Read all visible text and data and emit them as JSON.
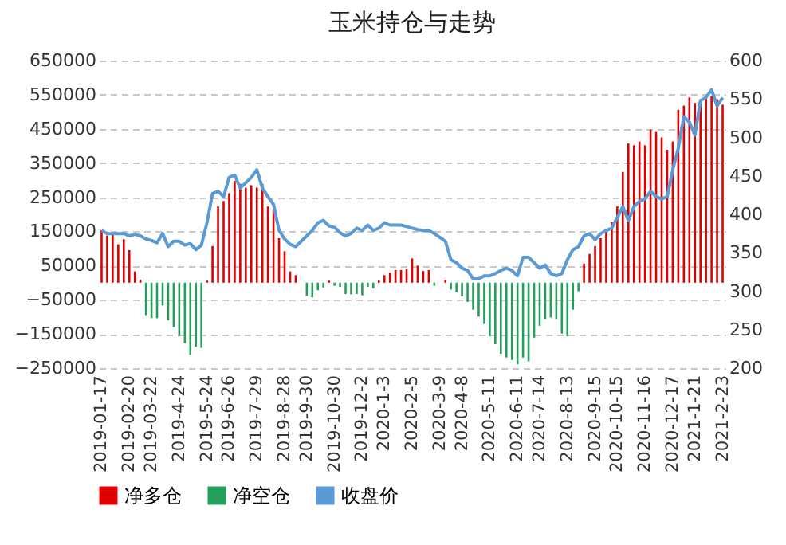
{
  "chart_data": {
    "type": "bar",
    "title": "玉米持仓与走势",
    "categories": [
      "2019-01-17",
      null,
      null,
      null,
      null,
      "2019-02-20",
      null,
      null,
      null,
      "2019-03-22",
      null,
      null,
      null,
      null,
      "2019-4-24",
      null,
      null,
      null,
      null,
      "2019-5-24",
      null,
      null,
      null,
      "2019-6-26",
      null,
      null,
      null,
      null,
      "2019-7-29",
      null,
      null,
      null,
      null,
      "2019-8-28",
      null,
      null,
      null,
      "2019-9-30",
      null,
      null,
      null,
      null,
      "2019-10-30",
      null,
      null,
      null,
      null,
      "2019-12-2",
      null,
      null,
      null,
      "2020-1-3",
      null,
      null,
      null,
      null,
      "2020-2-5",
      null,
      null,
      null,
      null,
      "2020-3-9",
      null,
      null,
      null,
      "2020-4-8",
      null,
      null,
      null,
      null,
      "2020-5-11",
      null,
      null,
      null,
      null,
      "2020-6-11",
      null,
      null,
      null,
      "2020-7-14",
      null,
      null,
      null,
      null,
      "2020-8-13",
      null,
      null,
      null,
      null,
      "2020-9-15",
      null,
      null,
      null,
      "2020-10-15",
      null,
      null,
      null,
      null,
      "2020-11-16",
      null,
      null,
      null,
      null,
      "2020-12-17",
      null,
      null,
      null,
      "2021-1-21",
      null,
      null,
      null,
      null,
      "2021-2-23"
    ],
    "series": [
      {
        "name": "净多仓",
        "color": "#e00000",
        "values": [
          153000,
          138000,
          143000,
          112000,
          127000,
          95000,
          33000,
          9000,
          null,
          null,
          null,
          null,
          null,
          null,
          null,
          null,
          null,
          null,
          null,
          6000,
          107000,
          223000,
          239000,
          262000,
          298000,
          289000,
          278000,
          285000,
          278000,
          289000,
          223000,
          216000,
          130000,
          92000,
          33000,
          22000,
          null,
          null,
          null,
          null,
          null,
          6000,
          null,
          null,
          null,
          null,
          null,
          null,
          null,
          null,
          6000,
          22000,
          29000,
          37000,
          37000,
          40000,
          71000,
          50000,
          34000,
          37000,
          null,
          null,
          9000,
          null,
          null,
          null,
          null,
          null,
          null,
          null,
          null,
          null,
          null,
          null,
          null,
          null,
          null,
          null,
          null,
          null,
          null,
          null,
          null,
          null,
          null,
          null,
          null,
          56000,
          84000,
          107000,
          130000,
          154000,
          177000,
          223000,
          324000,
          407000,
          402000,
          413000,
          402000,
          448000,
          441000,
          425000,
          389000,
          413000,
          506000,
          518000,
          542000,
          526000,
          534000,
          542000,
          546000,
          537000,
          521000
        ]
      },
      {
        "name": "净空仓",
        "color": "#22a05a",
        "values": [
          null,
          null,
          null,
          null,
          null,
          null,
          null,
          null,
          -95000,
          -104000,
          -104000,
          -67000,
          -110000,
          -130000,
          -157000,
          -177000,
          -211000,
          -188000,
          -191000,
          null,
          null,
          null,
          null,
          null,
          null,
          null,
          null,
          null,
          null,
          null,
          null,
          null,
          null,
          null,
          null,
          null,
          null,
          -40000,
          -43000,
          -22000,
          -14000,
          null,
          -9000,
          -12000,
          -33000,
          -34000,
          -33000,
          -37000,
          -12000,
          -17000,
          null,
          null,
          null,
          null,
          null,
          null,
          null,
          null,
          null,
          null,
          -9000,
          null,
          null,
          -20000,
          -28000,
          -40000,
          -56000,
          -79000,
          -99000,
          -121000,
          -157000,
          -180000,
          -208000,
          -219000,
          -226000,
          -239000,
          -219000,
          -230000,
          -161000,
          -126000,
          -106000,
          -102000,
          -106000,
          -149000,
          -157000,
          -79000,
          -25000,
          null,
          null,
          null,
          null,
          null,
          null,
          null,
          null,
          null,
          null,
          null,
          null,
          null,
          null,
          null,
          null,
          null,
          null,
          null,
          null,
          null,
          null,
          null,
          null,
          null,
          null
        ]
      },
      {
        "name": "收盘价",
        "type": "line",
        "axis": "y2",
        "color": "#5b9bd5",
        "values": [
          379,
          375,
          375,
          375,
          375,
          372,
          374,
          372,
          368,
          366,
          363,
          375,
          358,
          365,
          365,
          360,
          362,
          354,
          360,
          389,
          427,
          430,
          423,
          448,
          451,
          434,
          441,
          448,
          458,
          434,
          423,
          413,
          379,
          368,
          361,
          358,
          365,
          372,
          379,
          389,
          392,
          385,
          383,
          376,
          372,
          375,
          382,
          379,
          386,
          379,
          382,
          389,
          386,
          386,
          386,
          384,
          382,
          380,
          379,
          379,
          375,
          370,
          365,
          341,
          337,
          330,
          327,
          316,
          316,
          320,
          320,
          323,
          327,
          330,
          327,
          320,
          344,
          344,
          337,
          330,
          334,
          323,
          320,
          323,
          341,
          354,
          358,
          372,
          375,
          367,
          375,
          379,
          382,
          396,
          410,
          392,
          410,
          417,
          420,
          430,
          423,
          420,
          423,
          458,
          486,
          527,
          520,
          503,
          548,
          552,
          562,
          541,
          552
        ]
      }
    ],
    "ylim": [
      -250000,
      650000
    ],
    "yticks": [
      -250000,
      -150000,
      -50000,
      50000,
      150000,
      250000,
      350000,
      450000,
      550000,
      650000
    ],
    "y2lim": [
      200,
      600
    ],
    "y2ticks": [
      200,
      250,
      300,
      350,
      400,
      450,
      500,
      550,
      600
    ],
    "grid": "y",
    "legend": "bottom"
  }
}
